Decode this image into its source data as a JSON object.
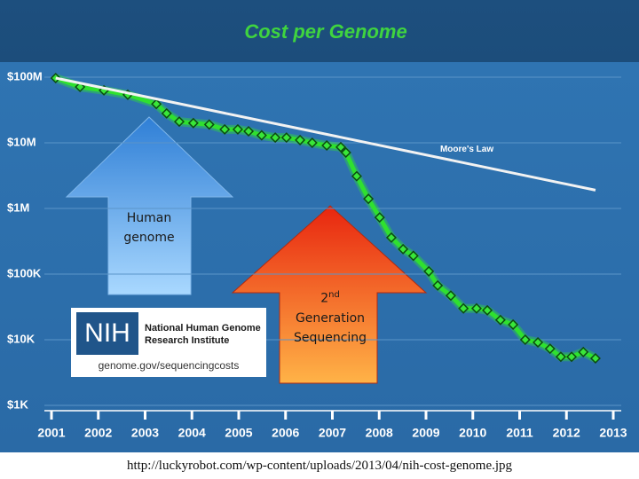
{
  "chart_data": {
    "type": "line",
    "title": "Cost per Genome",
    "ylog": true,
    "grid": true,
    "xlim": [
      2001,
      2013
    ],
    "xticks": [
      2001,
      2002,
      2003,
      2004,
      2005,
      2006,
      2007,
      2008,
      2009,
      2010,
      2011,
      2012,
      2013
    ],
    "ylim": [
      1000,
      100000000
    ],
    "yticks": [
      {
        "value": 1000,
        "label": "$1K"
      },
      {
        "value": 10000,
        "label": "$10K"
      },
      {
        "value": 100000,
        "label": "$100K"
      },
      {
        "value": 1000000,
        "label": "$1M"
      },
      {
        "value": 10000000,
        "label": "$10M"
      },
      {
        "value": 100000000,
        "label": "$100M"
      }
    ],
    "series": [
      {
        "name": "Cost per Genome",
        "color": "#2fe02f",
        "marker": true,
        "x": [
          2001.09,
          2001.61,
          2002.12,
          2002.63,
          2003.24,
          2003.46,
          2003.73,
          2004.03,
          2004.37,
          2004.7,
          2004.98,
          2005.21,
          2005.49,
          2005.78,
          2006.02,
          2006.31,
          2006.57,
          2006.88,
          2007.18,
          2007.29,
          2007.52,
          2007.77,
          2008.01,
          2008.26,
          2008.51,
          2008.73,
          2009.06,
          2009.25,
          2009.53,
          2009.8,
          2010.08,
          2010.31,
          2010.59,
          2010.86,
          2011.12,
          2011.39,
          2011.65,
          2011.88,
          2012.11,
          2012.36,
          2012.62
        ],
        "values": [
          97000000,
          71000000,
          63000000,
          54000000,
          39000000,
          28000000,
          21000000,
          20000000,
          19000000,
          16000000,
          16000000,
          15000000,
          13000000,
          12000000,
          12000000,
          11000000,
          10000000,
          9100000,
          8600000,
          7100000,
          3100000,
          1400000,
          730000,
          360000,
          240000,
          190000,
          110000,
          67000,
          47000,
          30000,
          30000,
          28000,
          20000,
          17000,
          10000,
          9100,
          7300,
          5500,
          5500,
          6500,
          5200
        ]
      },
      {
        "name": "Moore's Law",
        "color": "#f2f2f2",
        "marker": false,
        "x": [
          2001.09,
          2012.62
        ],
        "values": [
          97000000,
          1900000
        ]
      }
    ],
    "annotations": {
      "human_genome": "Human genome",
      "sequencing": {
        "ordinal": "2",
        "suffix": "nd",
        "text": "Generation Sequencing"
      },
      "logo": {
        "mark": "NIH",
        "line1": "National Human Genome",
        "line2": "Research Institute",
        "url": "genome.gov/sequencingcosts"
      }
    },
    "source": "http://luckyrobot.com/wp-content/uploads/2013/04/nih-cost-genome.jpg"
  }
}
